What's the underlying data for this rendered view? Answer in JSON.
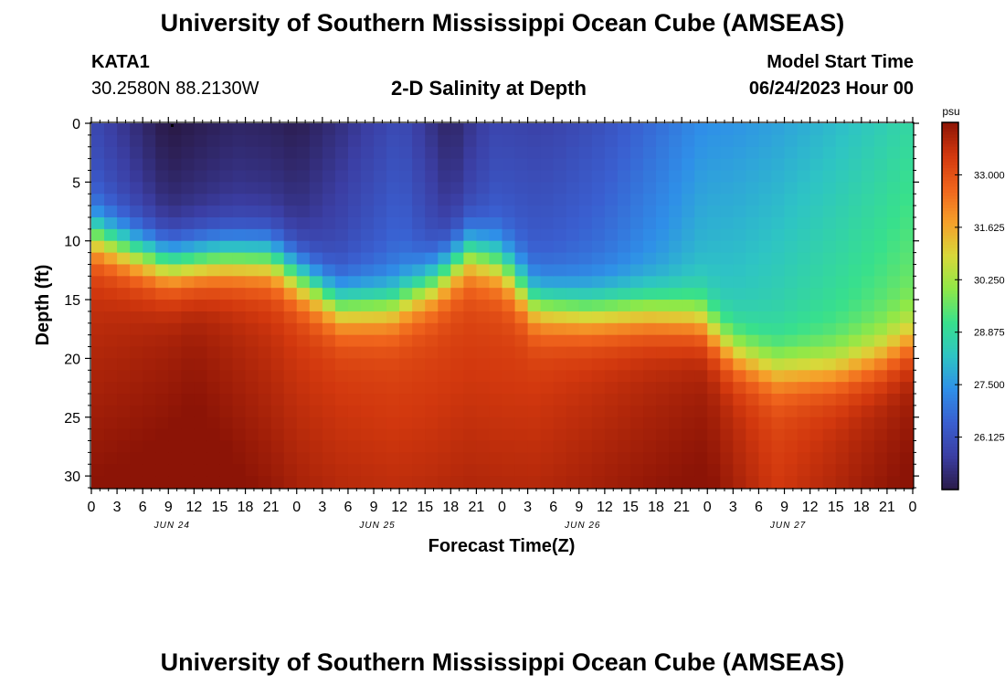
{
  "page": {
    "title": "University of Southern Mississippi Ocean Cube (AMSEAS)",
    "title_bottom": "University of Southern Mississippi Ocean Cube (AMSEAS)",
    "station": "KATA1",
    "coords": "30.2580N  88.2130W",
    "subtitle": "2-D Salinity at Depth",
    "model_start_label": "Model Start Time",
    "model_start_value": "06/24/2023 Hour 00"
  },
  "chart_data": {
    "type": "heatmap",
    "title": "2-D Salinity at Depth",
    "xlabel": "Forecast Time(Z)",
    "ylabel": "Depth (ft)",
    "x_range_hours": [
      0,
      96
    ],
    "x_tick_labels": [
      "0",
      "3",
      "6",
      "9",
      "12",
      "15",
      "18",
      "21",
      "0",
      "3",
      "6",
      "9",
      "12",
      "15",
      "18",
      "21",
      "0",
      "3",
      "6",
      "9",
      "12",
      "15",
      "18",
      "21",
      "0",
      "3",
      "6",
      "9",
      "12",
      "15",
      "18",
      "21",
      "0"
    ],
    "day_labels": [
      "JUN 24",
      "JUN 25",
      "JUN 26",
      "JUN 27"
    ],
    "y_range_ft": [
      0,
      31
    ],
    "y_ticks": [
      0,
      5,
      10,
      15,
      20,
      25,
      30
    ],
    "colorbar": {
      "units": "psu",
      "range": [
        24.75,
        34.375
      ],
      "tick_values": [
        26.125,
        27.5,
        28.875,
        30.25,
        31.625,
        33.0
      ],
      "tick_labels": [
        "26.125",
        "27.500",
        "28.875",
        "30.250",
        "31.625",
        "33.000"
      ],
      "colors": [
        "#2a1a48",
        "#3b3ea3",
        "#3a5fd0",
        "#2f8fe8",
        "#2ec4c4",
        "#38e08c",
        "#8fe848",
        "#d8d83a",
        "#f5a02a",
        "#f0641c",
        "#d2380e",
        "#8c1406"
      ]
    },
    "halocline_ft": [
      {
        "hour": 0,
        "depth": 9.5
      },
      {
        "hour": 5,
        "depth": 11.0
      },
      {
        "hour": 9,
        "depth": 12.0
      },
      {
        "hour": 15,
        "depth": 11.5
      },
      {
        "hour": 21,
        "depth": 11.5
      },
      {
        "hour": 25,
        "depth": 13.5
      },
      {
        "hour": 29,
        "depth": 15.5
      },
      {
        "hour": 35,
        "depth": 15.5
      },
      {
        "hour": 40,
        "depth": 13.5
      },
      {
        "hour": 44,
        "depth": 11.0
      },
      {
        "hour": 48,
        "depth": 12.0
      },
      {
        "hour": 52,
        "depth": 15.5
      },
      {
        "hour": 58,
        "depth": 16.0
      },
      {
        "hour": 65,
        "depth": 16.0
      },
      {
        "hour": 71,
        "depth": 16.5
      },
      {
        "hour": 75,
        "depth": 19.5
      },
      {
        "hour": 80,
        "depth": 21.0
      },
      {
        "hour": 87,
        "depth": 21.0
      },
      {
        "hour": 92,
        "depth": 20.0
      },
      {
        "hour": 96,
        "depth": 18.5
      }
    ],
    "surface_psu": [
      {
        "hour": 0,
        "value": 26.4
      },
      {
        "hour": 9,
        "value": 25.3
      },
      {
        "hour": 17,
        "value": 25.6
      },
      {
        "hour": 24,
        "value": 25.5
      },
      {
        "hour": 30,
        "value": 26.2
      },
      {
        "hour": 36,
        "value": 26.8
      },
      {
        "hour": 42,
        "value": 25.6
      },
      {
        "hour": 47,
        "value": 26.4
      },
      {
        "hour": 54,
        "value": 26.6
      },
      {
        "hour": 60,
        "value": 27.0
      },
      {
        "hour": 66,
        "value": 27.6
      },
      {
        "hour": 72,
        "value": 28.3
      },
      {
        "hour": 80,
        "value": 28.8
      },
      {
        "hour": 88,
        "value": 29.3
      },
      {
        "hour": 96,
        "value": 29.8
      }
    ],
    "bottom_psu": [
      {
        "hour": 0,
        "value": 33.6
      },
      {
        "hour": 12,
        "value": 34.0
      },
      {
        "hour": 24,
        "value": 33.4
      },
      {
        "hour": 36,
        "value": 33.2
      },
      {
        "hour": 48,
        "value": 33.2
      },
      {
        "hour": 60,
        "value": 33.6
      },
      {
        "hour": 72,
        "value": 34.0
      },
      {
        "hour": 80,
        "value": 33.2
      },
      {
        "hour": 90,
        "value": 33.8
      },
      {
        "hour": 96,
        "value": 34.1
      }
    ]
  }
}
